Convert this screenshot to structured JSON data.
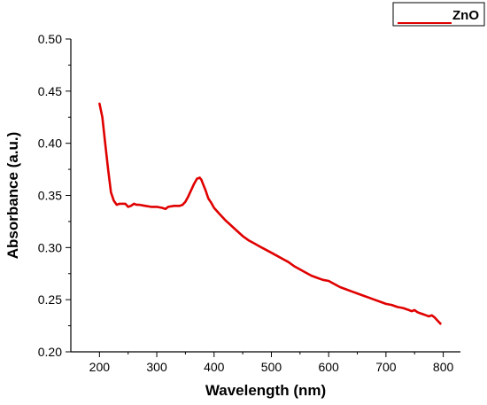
{
  "chart_data": {
    "type": "line",
    "title": "",
    "xlabel": "Wavelength (nm)",
    "ylabel": "Absorbance (a.u.)",
    "xlim": [
      150,
      830
    ],
    "ylim": [
      0.2,
      0.5
    ],
    "xticks": [
      200,
      300,
      400,
      500,
      600,
      700,
      800
    ],
    "yticks": [
      0.2,
      0.25,
      0.3,
      0.35,
      0.4,
      0.45,
      0.5
    ],
    "xtick_labels": [
      "200",
      "300",
      "400",
      "500",
      "600",
      "700",
      "800"
    ],
    "ytick_labels": [
      "0.20",
      "0.25",
      "0.30",
      "0.35",
      "0.40",
      "0.45",
      "0.50"
    ],
    "grid": false,
    "legend": "top-right",
    "series": [
      {
        "name": "ZnO",
        "color": "#e00000",
        "x": [
          200,
          205,
          210,
          215,
          220,
          225,
          230,
          235,
          240,
          245,
          250,
          255,
          260,
          265,
          270,
          280,
          290,
          300,
          310,
          315,
          320,
          330,
          335,
          340,
          345,
          350,
          355,
          360,
          365,
          370,
          375,
          378,
          380,
          385,
          390,
          395,
          400,
          410,
          420,
          430,
          440,
          450,
          460,
          470,
          480,
          490,
          500,
          510,
          520,
          530,
          540,
          550,
          560,
          570,
          580,
          590,
          600,
          610,
          620,
          630,
          640,
          650,
          660,
          670,
          680,
          690,
          700,
          710,
          720,
          730,
          740,
          745,
          750,
          755,
          760,
          765,
          770,
          775,
          780,
          785,
          790,
          795
        ],
        "y": [
          0.438,
          0.425,
          0.4,
          0.375,
          0.353,
          0.345,
          0.341,
          0.342,
          0.342,
          0.342,
          0.339,
          0.34,
          0.342,
          0.341,
          0.341,
          0.34,
          0.339,
          0.339,
          0.338,
          0.337,
          0.339,
          0.34,
          0.34,
          0.34,
          0.341,
          0.344,
          0.349,
          0.355,
          0.361,
          0.366,
          0.367,
          0.365,
          0.362,
          0.355,
          0.347,
          0.343,
          0.338,
          0.332,
          0.326,
          0.321,
          0.316,
          0.311,
          0.307,
          0.304,
          0.301,
          0.298,
          0.295,
          0.292,
          0.289,
          0.286,
          0.282,
          0.279,
          0.276,
          0.273,
          0.271,
          0.269,
          0.268,
          0.265,
          0.262,
          0.26,
          0.258,
          0.256,
          0.254,
          0.252,
          0.25,
          0.248,
          0.246,
          0.245,
          0.243,
          0.242,
          0.24,
          0.239,
          0.24,
          0.238,
          0.237,
          0.236,
          0.235,
          0.234,
          0.235,
          0.233,
          0.23,
          0.227
        ]
      }
    ]
  }
}
